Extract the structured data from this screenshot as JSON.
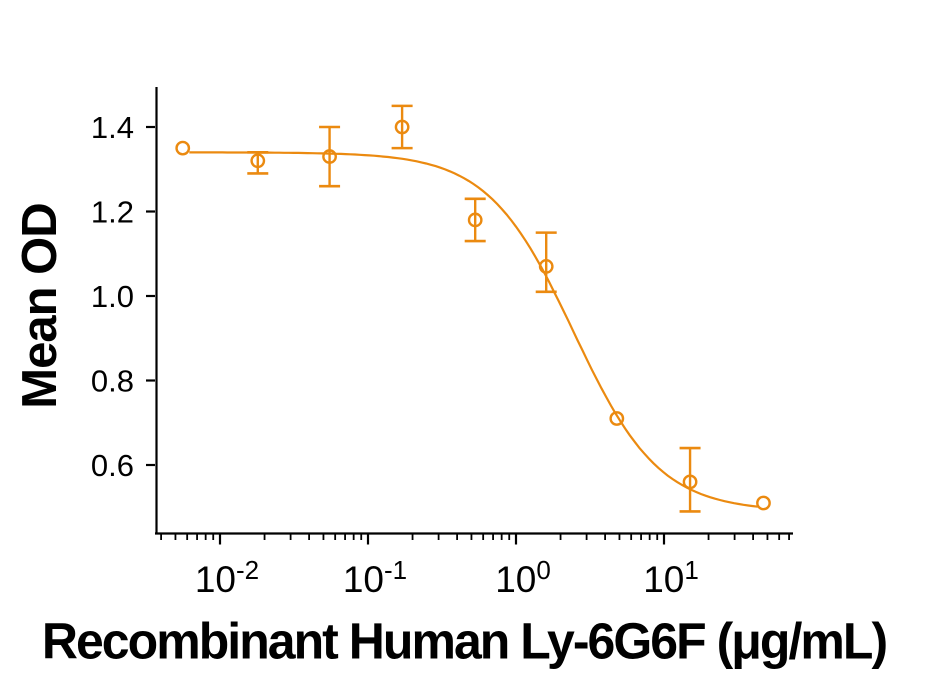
{
  "chart_data": {
    "type": "scatter",
    "title": "",
    "xlabel": "Recombinant Human Ly-6G6F (μg/mL)",
    "ylabel": "Mean OD",
    "x_scale": "log10",
    "x_axis_range_log10": [
      -2.43,
      1.87
    ],
    "y_axis_range": [
      0.44,
      1.5
    ],
    "grid": false,
    "legend": false,
    "x_ticks": [
      {
        "value": 0.01,
        "mantissa": "10",
        "exponent": "-2"
      },
      {
        "value": 0.1,
        "mantissa": "10",
        "exponent": "-1"
      },
      {
        "value": 1,
        "mantissa": "10",
        "exponent": "0"
      },
      {
        "value": 10,
        "mantissa": "10",
        "exponent": "1"
      }
    ],
    "y_ticks": [
      {
        "value": 0.6,
        "label": "0.6"
      },
      {
        "value": 0.8,
        "label": "0.8"
      },
      {
        "value": 1.0,
        "label": "1.0"
      },
      {
        "value": 1.2,
        "label": "1.2"
      },
      {
        "value": 1.4,
        "label": "1.4"
      }
    ],
    "series": [
      {
        "name": "Mean OD",
        "marker": "open-circle",
        "color": "#EB8A10",
        "points": [
          {
            "x": 0.0056,
            "y": 1.35
          },
          {
            "x": 0.018,
            "y": 1.32,
            "y_err_low": 1.29,
            "y_err_high": 1.34
          },
          {
            "x": 0.055,
            "y": 1.33,
            "y_err_low": 1.26,
            "y_err_high": 1.4
          },
          {
            "x": 0.17,
            "y": 1.4,
            "y_err_low": 1.35,
            "y_err_high": 1.45
          },
          {
            "x": 0.53,
            "y": 1.18,
            "y_err_low": 1.13,
            "y_err_high": 1.23
          },
          {
            "x": 1.6,
            "y": 1.07,
            "y_err_low": 1.01,
            "y_err_high": 1.15
          },
          {
            "x": 4.8,
            "y": 0.71
          },
          {
            "x": 15,
            "y": 0.56,
            "y_err_low": 0.49,
            "y_err_high": 0.64
          },
          {
            "x": 47,
            "y": 0.51
          }
        ]
      }
    ],
    "fit_curve": {
      "model": "4PL",
      "top": 1.34,
      "bottom": 0.49,
      "ec50": 2.45,
      "hill": 1.5,
      "x_start": 0.0062,
      "x_end": 43
    }
  },
  "colors": {
    "series": "#EB8A10",
    "axis": "#000000",
    "text": "#000000",
    "background": "#FFFFFF"
  }
}
